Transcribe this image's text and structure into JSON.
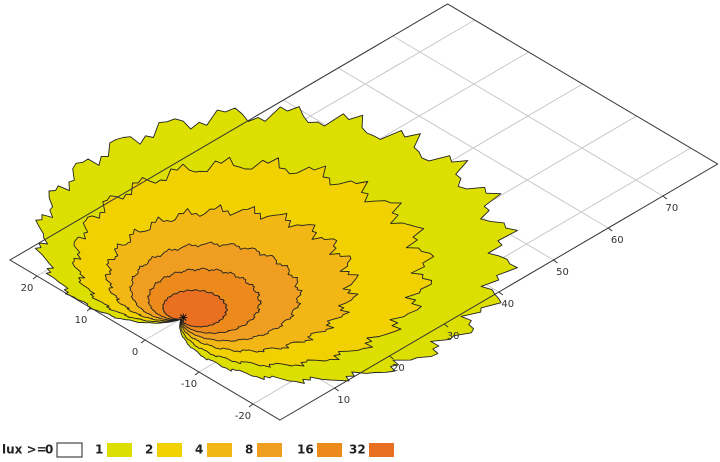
{
  "chart_data": {
    "type": "isolux",
    "legend_title": "lux >=",
    "levels": [
      0,
      1,
      2,
      4,
      8,
      16,
      32
    ],
    "colors": [
      "#ffffff",
      "#dcdf00",
      "#f1d200",
      "#f2b714",
      "#f09e22",
      "#ec8a1c",
      "#e87020"
    ],
    "xlim": [
      0,
      80
    ],
    "ylim": [
      -25,
      25
    ],
    "xticks": [
      10,
      20,
      30,
      40,
      50,
      60,
      70
    ],
    "yticks": [
      -20,
      -10,
      0,
      10,
      20
    ],
    "grid": true
  }
}
